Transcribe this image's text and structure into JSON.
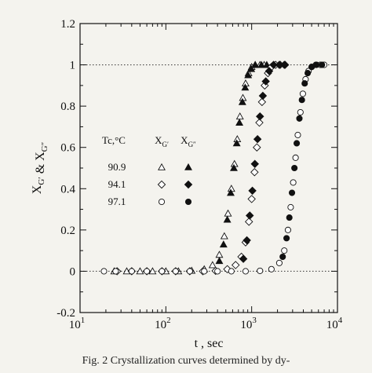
{
  "chart_data": {
    "type": "scatter",
    "x_scale": "log",
    "xlim": [
      10,
      10000
    ],
    "ylim": [
      -0.2,
      1.2
    ],
    "xlabel": "t , sec",
    "ylabel": "X_G′ & X_G″",
    "x_ticks": [
      {
        "value": 10,
        "base": "10",
        "exp": "1"
      },
      {
        "value": 100,
        "base": "10",
        "exp": "2"
      },
      {
        "value": 1000,
        "base": "10",
        "exp": "3"
      },
      {
        "value": 10000,
        "base": "10",
        "exp": "4"
      }
    ],
    "y_ticks": [
      {
        "value": -0.2,
        "label": "-0.2"
      },
      {
        "value": 0,
        "label": "0"
      },
      {
        "value": 0.2,
        "label": "0.2"
      },
      {
        "value": 0.4,
        "label": "0.4"
      },
      {
        "value": 0.6,
        "label": "0.6"
      },
      {
        "value": 0.8,
        "label": "0.8"
      },
      {
        "value": 1,
        "label": "1"
      },
      {
        "value": 1.2,
        "label": "1.2"
      }
    ],
    "reference_lines": [
      {
        "y": 0,
        "style": "dotted"
      },
      {
        "y": 1,
        "style": "dotted"
      }
    ],
    "legend": {
      "placement": "center-left",
      "header": {
        "tc": "Tc,°C",
        "col1": "X_G′",
        "col2": "X_G″"
      },
      "rows": [
        {
          "tc": "90.9",
          "open": "triangle",
          "filled": "triangle"
        },
        {
          "tc": "94.1",
          "open": "diamond",
          "filled": "diamond"
        },
        {
          "tc": "97.1",
          "open": "circle",
          "filled": "circle"
        }
      ]
    },
    "series": [
      {
        "tc": "90.9",
        "marker": "triangle",
        "open_points": [
          [
            25,
            0
          ],
          [
            35,
            0
          ],
          [
            50,
            0
          ],
          [
            70,
            0
          ],
          [
            100,
            0
          ],
          [
            140,
            0
          ],
          [
            200,
            0.003
          ],
          [
            280,
            0.01
          ],
          [
            350,
            0.03
          ],
          [
            420,
            0.08
          ],
          [
            480,
            0.17
          ],
          [
            530,
            0.28
          ],
          [
            580,
            0.4
          ],
          [
            630,
            0.52
          ],
          [
            680,
            0.64
          ],
          [
            730,
            0.75
          ],
          [
            790,
            0.84
          ],
          [
            850,
            0.91
          ],
          [
            920,
            0.96
          ],
          [
            1000,
            0.99
          ],
          [
            1100,
            1.0
          ],
          [
            1250,
            1.0
          ],
          [
            1400,
            1.0
          ]
        ],
        "filled_points": [
          [
            420,
            0.05
          ],
          [
            470,
            0.13
          ],
          [
            520,
            0.25
          ],
          [
            570,
            0.38
          ],
          [
            620,
            0.5
          ],
          [
            670,
            0.62
          ],
          [
            720,
            0.72
          ],
          [
            780,
            0.82
          ],
          [
            840,
            0.89
          ],
          [
            910,
            0.95
          ],
          [
            990,
            0.98
          ],
          [
            1100,
            1.0
          ],
          [
            1300,
            1.0
          ],
          [
            1500,
            1.0
          ]
        ]
      },
      {
        "tc": "94.1",
        "marker": "diamond",
        "open_points": [
          [
            27,
            0
          ],
          [
            40,
            0
          ],
          [
            60,
            0
          ],
          [
            90,
            0
          ],
          [
            130,
            0
          ],
          [
            190,
            0
          ],
          [
            270,
            0
          ],
          [
            380,
            0.002
          ],
          [
            520,
            0.01
          ],
          [
            650,
            0.03
          ],
          [
            760,
            0.07
          ],
          [
            850,
            0.14
          ],
          [
            930,
            0.24
          ],
          [
            1000,
            0.35
          ],
          [
            1080,
            0.48
          ],
          [
            1150,
            0.6
          ],
          [
            1230,
            0.72
          ],
          [
            1320,
            0.82
          ],
          [
            1420,
            0.9
          ],
          [
            1550,
            0.96
          ],
          [
            1700,
            0.99
          ],
          [
            1900,
            1.0
          ],
          [
            2150,
            1.0
          ],
          [
            2400,
            1.0
          ]
        ],
        "filled_points": [
          [
            800,
            0.06
          ],
          [
            880,
            0.15
          ],
          [
            950,
            0.27
          ],
          [
            1020,
            0.39
          ],
          [
            1090,
            0.52
          ],
          [
            1170,
            0.64
          ],
          [
            1250,
            0.75
          ],
          [
            1350,
            0.85
          ],
          [
            1460,
            0.92
          ],
          [
            1600,
            0.97
          ],
          [
            1800,
            1.0
          ],
          [
            2100,
            1.0
          ],
          [
            2450,
            1.0
          ]
        ]
      },
      {
        "tc": "97.1",
        "marker": "circle",
        "open_points": [
          [
            19,
            0
          ],
          [
            26,
            0
          ],
          [
            40,
            0
          ],
          [
            60,
            0
          ],
          [
            90,
            0
          ],
          [
            130,
            0
          ],
          [
            190,
            0
          ],
          [
            280,
            0
          ],
          [
            400,
            0
          ],
          [
            580,
            0
          ],
          [
            850,
            0
          ],
          [
            1250,
            0.002
          ],
          [
            1700,
            0.01
          ],
          [
            2100,
            0.04
          ],
          [
            2400,
            0.1
          ],
          [
            2650,
            0.2
          ],
          [
            2850,
            0.31
          ],
          [
            3050,
            0.43
          ],
          [
            3250,
            0.55
          ],
          [
            3450,
            0.66
          ],
          [
            3700,
            0.77
          ],
          [
            3950,
            0.86
          ],
          [
            4250,
            0.93
          ],
          [
            4600,
            0.97
          ],
          [
            5000,
            0.99
          ],
          [
            5600,
            1.0
          ],
          [
            6300,
            1.0
          ],
          [
            7000,
            1.0
          ]
        ],
        "filled_points": [
          [
            2300,
            0.07
          ],
          [
            2550,
            0.16
          ],
          [
            2750,
            0.26
          ],
          [
            2950,
            0.38
          ],
          [
            3150,
            0.5
          ],
          [
            3350,
            0.62
          ],
          [
            3600,
            0.74
          ],
          [
            3850,
            0.83
          ],
          [
            4150,
            0.91
          ],
          [
            4500,
            0.96
          ],
          [
            5000,
            0.99
          ],
          [
            5700,
            1.0
          ],
          [
            6600,
            1.0
          ]
        ]
      }
    ]
  },
  "caption": "Fig. 2   Crystallization curves determined by dy-"
}
